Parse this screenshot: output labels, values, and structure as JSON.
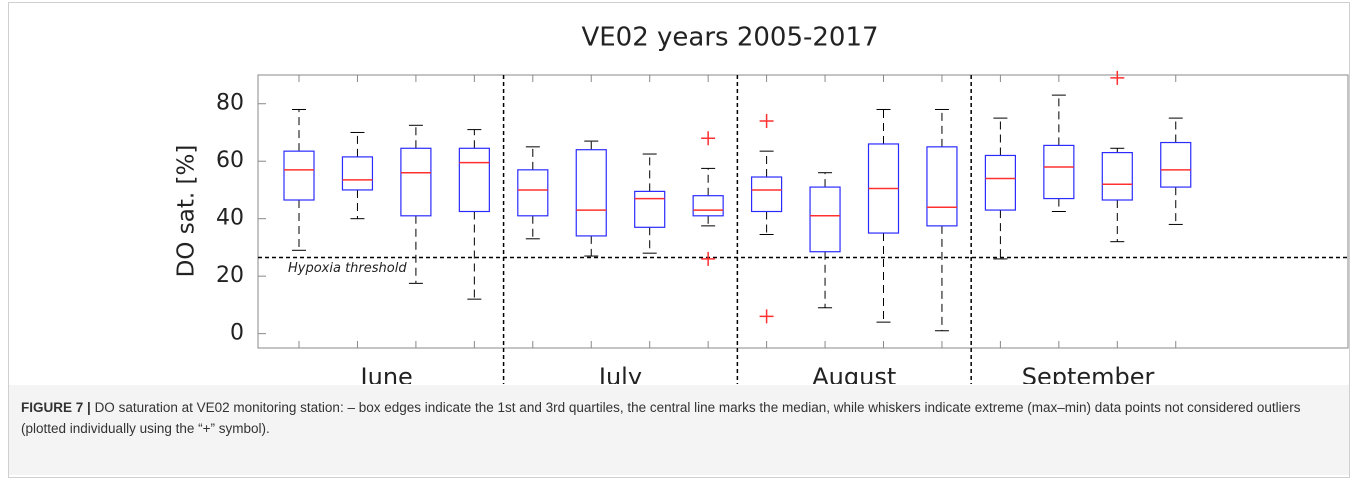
{
  "chart_data": {
    "type": "box",
    "title": "VE02 years 2005-2017",
    "y_label": "DO sat. [%]",
    "ylim": [
      -5,
      90
    ],
    "yticks": [
      0,
      20,
      40,
      60,
      80
    ],
    "groups": [
      "June",
      "July",
      "August",
      "September"
    ],
    "colors": {
      "box": "#2b2bff",
      "median": "#ff3030",
      "whisker": "#000000",
      "outlier": "#ff3030"
    },
    "threshold": {
      "value": 26.5,
      "label": "Hypoxia threshold"
    },
    "boxes": [
      {
        "min": 29,
        "q1": 46.5,
        "median": 57,
        "q3": 63.5,
        "max": 78,
        "outliers": []
      },
      {
        "min": 40,
        "q1": 50,
        "median": 53.5,
        "q3": 61.5,
        "max": 70,
        "outliers": []
      },
      {
        "min": 17.5,
        "q1": 41,
        "median": 56,
        "q3": 64.5,
        "max": 72.5,
        "outliers": []
      },
      {
        "min": 12,
        "q1": 42.5,
        "median": 59.5,
        "q3": 64.5,
        "max": 71,
        "outliers": []
      },
      {
        "min": 33,
        "q1": 41,
        "median": 50,
        "q3": 57,
        "max": 65,
        "outliers": []
      },
      {
        "min": 27,
        "q1": 34,
        "median": 43,
        "q3": 64,
        "max": 67,
        "outliers": []
      },
      {
        "min": 28,
        "q1": 37,
        "median": 47,
        "q3": 49.5,
        "max": 62.5,
        "outliers": []
      },
      {
        "min": 37.5,
        "q1": 41,
        "median": 43,
        "q3": 48,
        "max": 57.5,
        "outliers": [
          68,
          26
        ]
      },
      {
        "min": 34.5,
        "q1": 42.5,
        "median": 50,
        "q3": 54.5,
        "max": 63.5,
        "outliers": [
          74,
          6
        ]
      },
      {
        "min": 9,
        "q1": 28.5,
        "median": 41,
        "q3": 51,
        "max": 56,
        "outliers": []
      },
      {
        "min": 4,
        "q1": 35,
        "median": 50.5,
        "q3": 66,
        "max": 78,
        "outliers": []
      },
      {
        "min": 1,
        "q1": 37.5,
        "median": 44,
        "q3": 65,
        "max": 78,
        "outliers": []
      },
      {
        "min": 26,
        "q1": 43,
        "median": 54,
        "q3": 62,
        "max": 75,
        "outliers": []
      },
      {
        "min": 42.5,
        "q1": 47,
        "median": 58,
        "q3": 65.5,
        "max": 83,
        "outliers": []
      },
      {
        "min": 32,
        "q1": 46.5,
        "median": 52,
        "q3": 63,
        "max": 64.5,
        "outliers": [
          89
        ]
      },
      {
        "min": 38,
        "q1": 51,
        "median": 57,
        "q3": 66.5,
        "max": 75,
        "outliers": []
      }
    ]
  },
  "caption": {
    "label": "FIGURE 7 |",
    "text": "DO saturation at VE02 monitoring station: – box edges indicate the 1st and 3rd quartiles, the central line marks the median, while whiskers indicate extreme (max–min) data points not considered outliers (plotted individually using the “+” symbol)."
  }
}
